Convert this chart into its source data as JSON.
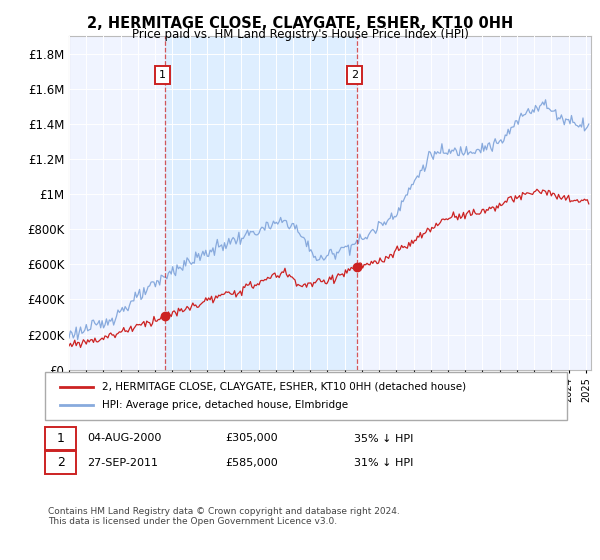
{
  "title": "2, HERMITAGE CLOSE, CLAYGATE, ESHER, KT10 0HH",
  "subtitle": "Price paid vs. HM Land Registry's House Price Index (HPI)",
  "legend_line1": "2, HERMITAGE CLOSE, CLAYGATE, ESHER, KT10 0HH (detached house)",
  "legend_line2": "HPI: Average price, detached house, Elmbridge",
  "annotation1_date": "04-AUG-2000",
  "annotation1_price": "£305,000",
  "annotation1_hpi": "35% ↓ HPI",
  "annotation2_date": "27-SEP-2011",
  "annotation2_price": "£585,000",
  "annotation2_hpi": "31% ↓ HPI",
  "footnote": "Contains HM Land Registry data © Crown copyright and database right 2024.\nThis data is licensed under the Open Government Licence v3.0.",
  "sale1_year": 2000.58,
  "sale1_value": 305000,
  "sale2_year": 2011.73,
  "sale2_value": 585000,
  "red_color": "#cc2222",
  "blue_color": "#88aadd",
  "shade_color": "#ddeeff",
  "background_color": "#f0f4ff",
  "ylim_min": 0,
  "ylim_max": 1900000,
  "xlim_min": 1995,
  "xlim_max": 2025.3
}
